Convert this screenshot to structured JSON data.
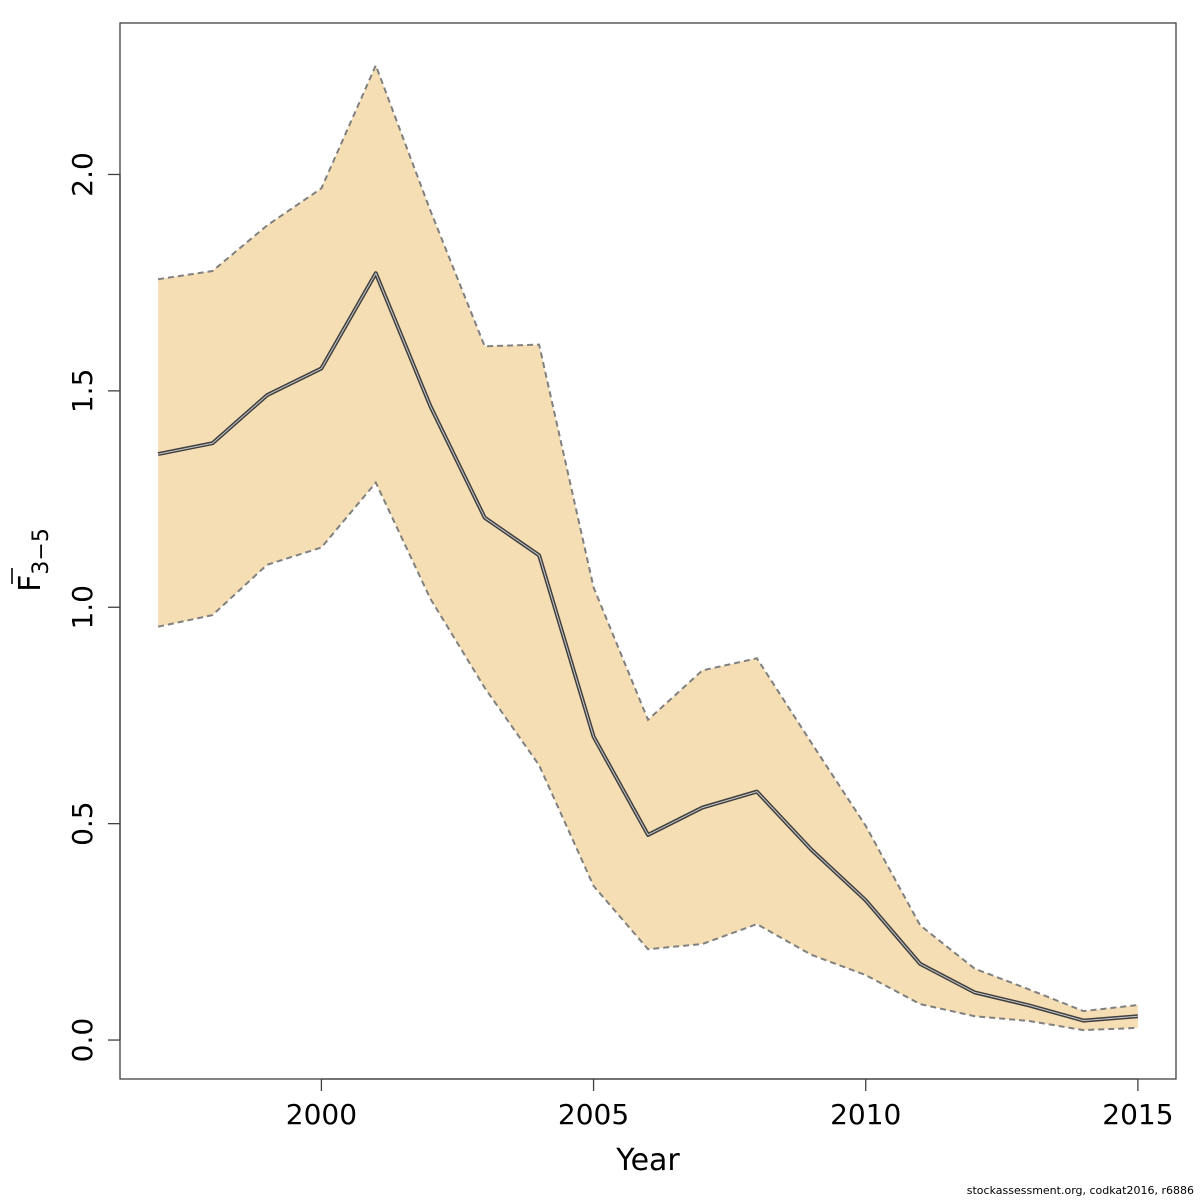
{
  "chart_data": {
    "type": "area",
    "x": [
      1997,
      1998,
      1999,
      2000,
      2001,
      2002,
      2003,
      2004,
      2005,
      2006,
      2007,
      2008,
      2009,
      2010,
      2011,
      2012,
      2013,
      2014,
      2015
    ],
    "series": [
      {
        "values": [
          1.354,
          1.379,
          1.49,
          1.552,
          1.772,
          1.465,
          1.207,
          1.12,
          0.701,
          0.474,
          0.537,
          0.574,
          0.44,
          0.323,
          0.176,
          0.11,
          0.08,
          0.045,
          0.055
        ]
      }
    ],
    "band_upper": [
      1.758,
      1.777,
      1.882,
      1.968,
      2.252,
      1.917,
      1.603,
      1.607,
      1.046,
      0.74,
      0.854,
      0.882,
      0.687,
      0.495,
      0.265,
      0.165,
      0.117,
      0.067,
      0.081
    ],
    "band_lower": [
      0.955,
      0.982,
      1.098,
      1.138,
      1.288,
      1.02,
      0.814,
      0.635,
      0.356,
      0.21,
      0.222,
      0.268,
      0.197,
      0.15,
      0.083,
      0.055,
      0.044,
      0.023,
      0.028
    ],
    "xlabel": "Year",
    "ylabel_main": "F",
    "ylabel_sub": "3−5",
    "xlim": [
      1996.3,
      2015.7
    ],
    "ylim": [
      -0.09,
      2.35
    ],
    "xticks": [
      "2000",
      "2005",
      "2010",
      "2015"
    ],
    "yticks": [
      "0.0",
      "0.5",
      "1.0",
      "1.5",
      "2.0"
    ],
    "grid": false,
    "legend": "none"
  },
  "colors": {
    "band_fill": "#f5deb3",
    "band_border": "#808080",
    "line": "#404040",
    "axis": "#404040"
  },
  "footer": "stockassessment.org, codkat2016, r6886"
}
